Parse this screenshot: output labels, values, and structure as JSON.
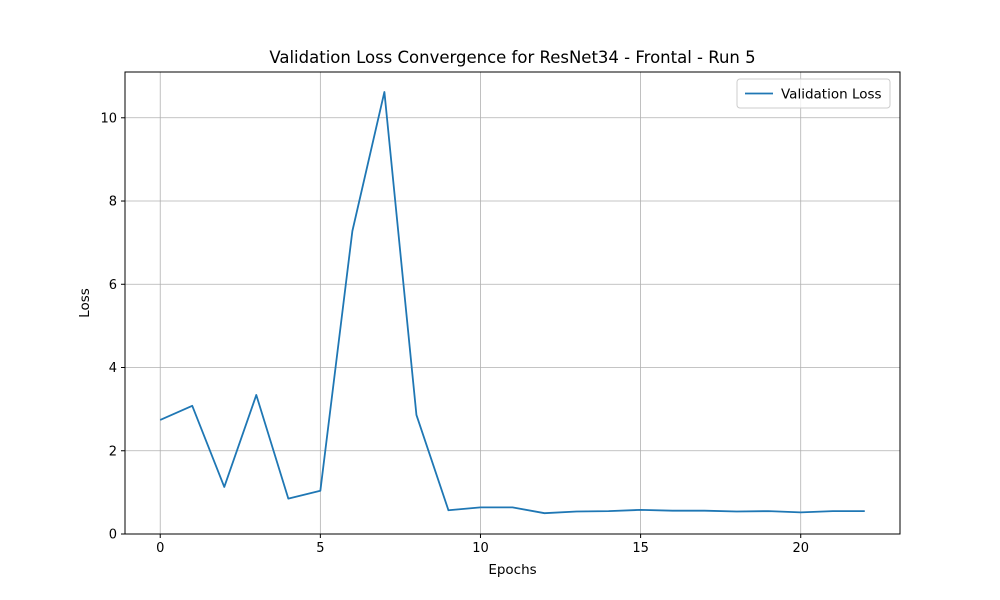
{
  "chart_data": {
    "type": "line",
    "title": "Validation Loss Convergence for ResNet34 - Frontal - Run 5",
    "xlabel": "Epochs",
    "ylabel": "Loss",
    "xlim": [
      -1.1,
      23.1
    ],
    "ylim": [
      0,
      11.1
    ],
    "xticks": [
      0,
      5,
      10,
      15,
      20
    ],
    "yticks": [
      0,
      2,
      4,
      6,
      8,
      10
    ],
    "grid": true,
    "legend_position": "top-right",
    "series": [
      {
        "name": "Validation Loss",
        "color": "#1f77b4",
        "x": [
          0,
          1,
          2,
          3,
          4,
          5,
          6,
          7,
          8,
          9,
          10,
          11,
          12,
          13,
          14,
          15,
          16,
          17,
          18,
          19,
          20,
          21,
          22
        ],
        "y": [
          2.74,
          3.08,
          1.13,
          3.34,
          0.85,
          1.04,
          7.28,
          10.62,
          2.86,
          0.57,
          0.64,
          0.64,
          0.5,
          0.54,
          0.55,
          0.58,
          0.56,
          0.56,
          0.54,
          0.55,
          0.52,
          0.55,
          0.55
        ]
      }
    ]
  }
}
